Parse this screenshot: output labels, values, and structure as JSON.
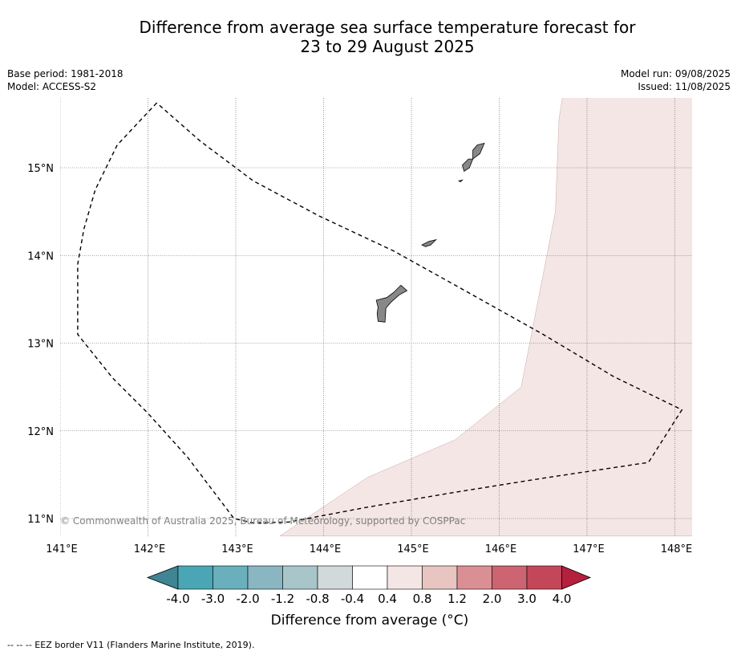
{
  "title": {
    "line1": "Difference from average sea surface temperature forecast for",
    "line2": "23 to 29 August 2025"
  },
  "meta": {
    "base_period": "Base period: 1981-2018",
    "model": "Model: ACCESS-S2",
    "model_run": "Model run: 09/08/2025",
    "issued": "Issued: 11/08/2025"
  },
  "map": {
    "lon_range": [
      141.0,
      148.2
    ],
    "lat_range": [
      10.8,
      15.8
    ],
    "lon_ticks": [
      141,
      142,
      143,
      144,
      145,
      146,
      147,
      148
    ],
    "lon_labels": [
      "141°E",
      "142°E",
      "143°E",
      "144°E",
      "145°E",
      "146°E",
      "147°E",
      "148°E"
    ],
    "lat_ticks": [
      11,
      12,
      13,
      14,
      15
    ],
    "lat_labels": [
      "11°N",
      "12°N",
      "13°N",
      "14°N",
      "15°N"
    ],
    "grid": true,
    "land_color": "#888888",
    "anomaly_fill_color": "#f4e6e5",
    "anomaly_zone_0_4_to_0_8": [
      [
        146.72,
        15.8
      ],
      [
        146.68,
        15.55
      ],
      [
        146.64,
        14.5
      ],
      [
        146.25,
        12.5
      ],
      [
        145.5,
        11.9
      ],
      [
        144.5,
        11.47
      ],
      [
        143.5,
        10.8
      ],
      [
        148.2,
        10.8
      ],
      [
        148.2,
        15.8
      ]
    ],
    "eez_border": [
      [
        142.1,
        15.74
      ],
      [
        141.65,
        15.26
      ],
      [
        141.4,
        14.75
      ],
      [
        141.27,
        14.3
      ],
      [
        141.2,
        13.9
      ],
      [
        141.2,
        13.1
      ],
      [
        141.6,
        12.6
      ],
      [
        142.0,
        12.2
      ],
      [
        142.45,
        11.7
      ],
      [
        142.98,
        11.0
      ],
      [
        143.2,
        10.95
      ],
      [
        143.6,
        10.96
      ],
      [
        144.5,
        11.13
      ],
      [
        145.5,
        11.3
      ],
      [
        146.5,
        11.46
      ],
      [
        147.7,
        11.64
      ],
      [
        148.08,
        12.24
      ],
      [
        147.3,
        12.62
      ],
      [
        146.5,
        13.1
      ],
      [
        145.5,
        13.66
      ],
      [
        144.8,
        14.05
      ],
      [
        143.95,
        14.45
      ],
      [
        143.2,
        14.85
      ],
      [
        142.6,
        15.3
      ],
      [
        142.1,
        15.74
      ]
    ],
    "islands": [
      {
        "name": "Guam",
        "coords": [
          [
            144.62,
            13.25
          ],
          [
            144.7,
            13.24
          ],
          [
            144.71,
            13.4
          ],
          [
            144.77,
            13.47
          ],
          [
            144.86,
            13.55
          ],
          [
            144.95,
            13.6
          ],
          [
            144.88,
            13.66
          ],
          [
            144.8,
            13.58
          ],
          [
            144.72,
            13.52
          ],
          [
            144.6,
            13.49
          ],
          [
            144.62,
            13.41
          ],
          [
            144.61,
            13.34
          ]
        ]
      },
      {
        "name": "Rota",
        "coords": [
          [
            145.12,
            14.12
          ],
          [
            145.2,
            14.16
          ],
          [
            145.28,
            14.18
          ],
          [
            145.22,
            14.12
          ],
          [
            145.16,
            14.1
          ]
        ]
      },
      {
        "name": "Aguijan",
        "coords": [
          [
            145.54,
            14.85
          ],
          [
            145.58,
            14.86
          ],
          [
            145.56,
            14.84
          ]
        ]
      },
      {
        "name": "Tinian",
        "coords": [
          [
            145.6,
            14.96
          ],
          [
            145.66,
            15.0
          ],
          [
            145.7,
            15.1
          ],
          [
            145.65,
            15.1
          ],
          [
            145.58,
            15.03
          ]
        ]
      },
      {
        "name": "Saipan",
        "coords": [
          [
            145.7,
            15.1
          ],
          [
            145.78,
            15.16
          ],
          [
            145.83,
            15.28
          ],
          [
            145.75,
            15.26
          ],
          [
            145.7,
            15.2
          ]
        ]
      }
    ]
  },
  "copyright": "© Commonwealth of Australia 2025, Bureau of Meteorology, supported by COSPPac",
  "colorbar": {
    "title": "Difference from average (°C)",
    "tick_labels": [
      "-4.0",
      "-3.0",
      "-2.0",
      "-1.2",
      "-0.8",
      "-0.4",
      "0.4",
      "0.8",
      "1.2",
      "2.0",
      "3.0",
      "4.0"
    ],
    "under_color": "#3f8593",
    "over_color": "#b5203e",
    "colors": [
      "#4aa6b5",
      "#6aafbc",
      "#89b6c1",
      "#a8c6ca",
      "#d2d9da",
      "#ffffff",
      "#f4e6e5",
      "#e8c5c1",
      "#da8f95",
      "#cd6471",
      "#c34759"
    ]
  },
  "footnote": "-- -- -- EEZ border V11 (Flanders Marine Institute, 2019)."
}
